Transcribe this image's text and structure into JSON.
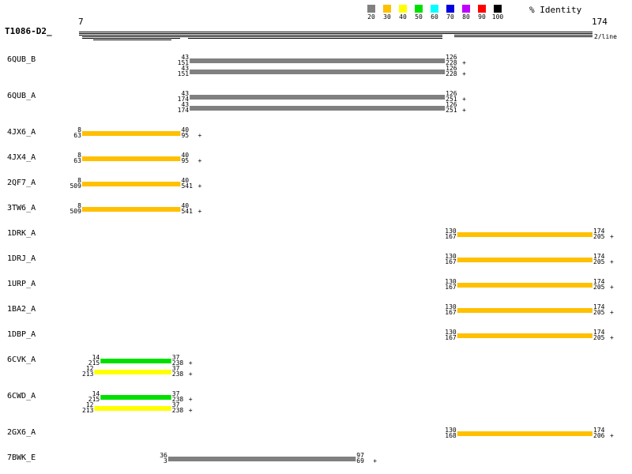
{
  "header": {
    "query_name": "T1086-D2_",
    "start": "7",
    "end": "174",
    "per_line": "2/line",
    "legend_title": "% Identity"
  },
  "legend": [
    {
      "label": "20",
      "color": "#808080"
    },
    {
      "label": "30",
      "color": "#ffc000"
    },
    {
      "label": "40",
      "color": "#ffff00"
    },
    {
      "label": "50",
      "color": "#00e000"
    },
    {
      "label": "60",
      "color": "#00ffff"
    },
    {
      "label": "70",
      "color": "#0000e0"
    },
    {
      "label": "80",
      "color": "#c000ff"
    },
    {
      "label": "90",
      "color": "#ff0000"
    },
    {
      "label": "100",
      "color": "#000000"
    }
  ],
  "rows": [
    {
      "name": "6QUB_B",
      "hits": [
        {
          "q_start": 43,
          "q_end": 126,
          "s_start": 151,
          "s_end": 228,
          "identity": "20"
        },
        {
          "q_start": 43,
          "q_end": 126,
          "s_start": 151,
          "s_end": 228,
          "identity": "20"
        }
      ]
    },
    {
      "name": "6QUB_A",
      "hits": [
        {
          "q_start": 43,
          "q_end": 126,
          "s_start": 174,
          "s_end": 251,
          "identity": "20"
        },
        {
          "q_start": 43,
          "q_end": 126,
          "s_start": 174,
          "s_end": 251,
          "identity": "20"
        }
      ]
    },
    {
      "name": "4JX6_A",
      "hits": [
        {
          "q_start": 8,
          "q_end": 40,
          "s_start": 63,
          "s_end": 95,
          "identity": "30"
        }
      ]
    },
    {
      "name": "4JX4_A",
      "hits": [
        {
          "q_start": 8,
          "q_end": 40,
          "s_start": 63,
          "s_end": 95,
          "identity": "30"
        }
      ]
    },
    {
      "name": "2QF7_A",
      "hits": [
        {
          "q_start": 8,
          "q_end": 40,
          "s_start": 509,
          "s_end": 541,
          "identity": "30"
        }
      ]
    },
    {
      "name": "3TW6_A",
      "hits": [
        {
          "q_start": 8,
          "q_end": 40,
          "s_start": 509,
          "s_end": 541,
          "identity": "30"
        }
      ]
    },
    {
      "name": "1DRK_A",
      "hits": [
        {
          "q_start": 130,
          "q_end": 174,
          "s_start": 167,
          "s_end": 205,
          "identity": "30"
        }
      ]
    },
    {
      "name": "1DRJ_A",
      "hits": [
        {
          "q_start": 130,
          "q_end": 174,
          "s_start": 167,
          "s_end": 205,
          "identity": "30"
        }
      ]
    },
    {
      "name": "1URP_A",
      "hits": [
        {
          "q_start": 130,
          "q_end": 174,
          "s_start": 167,
          "s_end": 205,
          "identity": "30"
        }
      ]
    },
    {
      "name": "1BA2_A",
      "hits": [
        {
          "q_start": 130,
          "q_end": 174,
          "s_start": 167,
          "s_end": 205,
          "identity": "30"
        }
      ]
    },
    {
      "name": "1DBP_A",
      "hits": [
        {
          "q_start": 130,
          "q_end": 174,
          "s_start": 167,
          "s_end": 205,
          "identity": "30"
        }
      ]
    },
    {
      "name": "6CVK_A",
      "hits": [
        {
          "q_start": 14,
          "q_end": 37,
          "s_start": 215,
          "s_end": 238,
          "identity": "50"
        },
        {
          "q_start": 12,
          "q_end": 37,
          "s_start": 213,
          "s_end": 238,
          "identity": "40"
        }
      ]
    },
    {
      "name": "6CWD_A",
      "hits": [
        {
          "q_start": 14,
          "q_end": 37,
          "s_start": 215,
          "s_end": 238,
          "identity": "50"
        },
        {
          "q_start": 12,
          "q_end": 37,
          "s_start": 213,
          "s_end": 238,
          "identity": "40"
        }
      ]
    },
    {
      "name": "2GX6_A",
      "hits": [
        {
          "q_start": 130,
          "q_end": 174,
          "s_start": 168,
          "s_end": 206,
          "identity": "30"
        }
      ]
    },
    {
      "name": "7BWK_E",
      "hits": [
        {
          "q_start": 36,
          "q_end": 97,
          "s_start": 3,
          "s_end": 69,
          "identity": "20"
        }
      ]
    }
  ]
}
